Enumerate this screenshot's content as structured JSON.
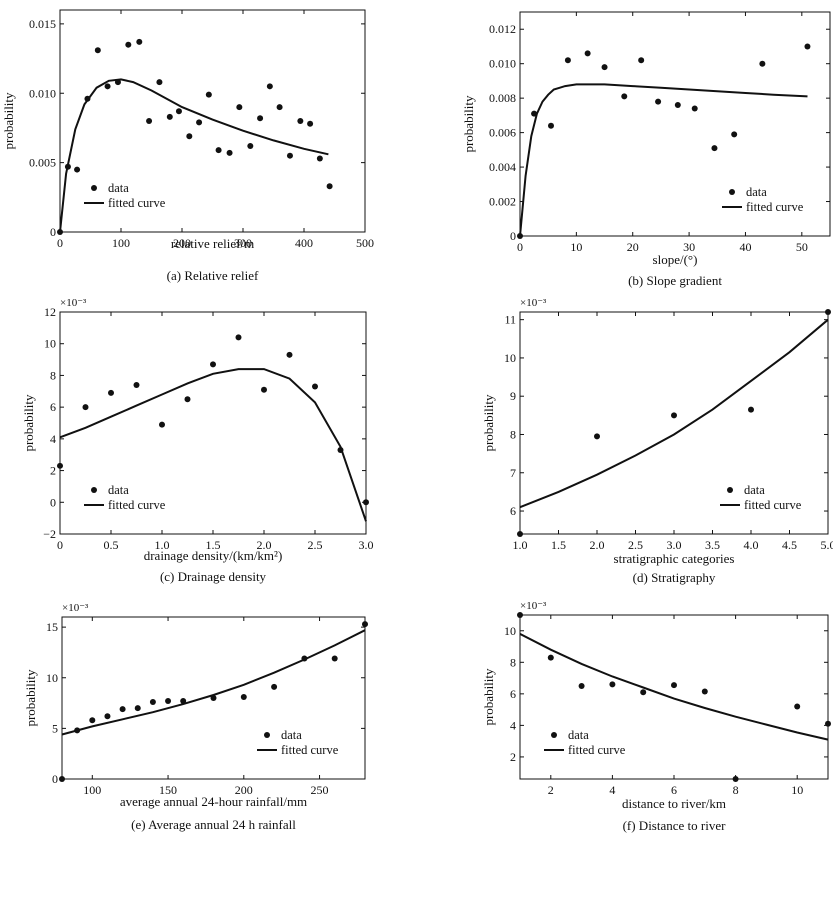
{
  "colors": {
    "ink": "#111111",
    "background": "#ffffff"
  },
  "chart_data": [
    {
      "id": "a",
      "type": "scatter",
      "caption": "(a) Relative relief",
      "xlabel": "relative relief/m",
      "ylabel": "probability",
      "xlim": [
        0,
        500
      ],
      "ylim": [
        0,
        0.016
      ],
      "xticks": [
        0,
        100,
        200,
        300,
        400,
        500
      ],
      "xtick_labels": [
        "0",
        "100",
        "200",
        "300",
        "400",
        "500"
      ],
      "yticks": [
        0,
        0.005,
        0.01,
        0.015
      ],
      "ytick_labels": [
        "0",
        "0.005",
        "0.010",
        "0.015"
      ],
      "multiplier": null,
      "legend": {
        "data": "data",
        "fit": "fitted curve",
        "position": "bottom-left"
      },
      "series": [
        {
          "name": "data",
          "x": [
            0,
            13,
            28,
            45,
            62,
            78,
            95,
            112,
            130,
            146,
            163,
            180,
            195,
            212,
            228,
            244,
            260,
            278,
            294,
            312,
            328,
            344,
            360,
            377,
            394,
            410,
            426,
            442
          ],
          "y": [
            0,
            0.0047,
            0.0045,
            0.0096,
            0.0131,
            0.0105,
            0.0108,
            0.0135,
            0.0137,
            0.008,
            0.0108,
            0.0083,
            0.0087,
            0.0069,
            0.0079,
            0.0099,
            0.0059,
            0.0057,
            0.009,
            0.0062,
            0.0082,
            0.0105,
            0.009,
            0.0055,
            0.008,
            0.0078,
            0.0053,
            0.0033
          ]
        },
        {
          "name": "fitted curve",
          "x": [
            0,
            10,
            25,
            40,
            60,
            80,
            100,
            120,
            150,
            200,
            250,
            300,
            350,
            400,
            440
          ],
          "y": [
            0,
            0.0042,
            0.0074,
            0.0092,
            0.0104,
            0.0109,
            0.011,
            0.0108,
            0.0102,
            0.009,
            0.0081,
            0.0073,
            0.0066,
            0.006,
            0.0056
          ]
        }
      ]
    },
    {
      "id": "b",
      "type": "scatter",
      "caption": "(b) Slope gradient",
      "xlabel": "slope/(°)",
      "ylabel": "probability",
      "xlim": [
        0,
        55
      ],
      "ylim": [
        0,
        0.013
      ],
      "xticks": [
        0,
        10,
        20,
        30,
        40,
        50
      ],
      "xtick_labels": [
        "0",
        "10",
        "20",
        "30",
        "40",
        "50"
      ],
      "yticks": [
        0,
        0.002,
        0.004,
        0.006,
        0.008,
        0.01,
        0.012
      ],
      "ytick_labels": [
        "0",
        "0.002",
        "0.004",
        "0.006",
        "0.008",
        "0.010",
        "0.012"
      ],
      "multiplier": null,
      "legend": {
        "data": "data",
        "fit": "fitted curve",
        "position": "bottom-right"
      },
      "series": [
        {
          "name": "data",
          "x": [
            0,
            2.5,
            5.5,
            8.5,
            12,
            15,
            18.5,
            21.5,
            24.5,
            28,
            31,
            34.5,
            38,
            43,
            51
          ],
          "y": [
            0,
            0.0071,
            0.0064,
            0.0102,
            0.0106,
            0.0098,
            0.0081,
            0.0102,
            0.0078,
            0.0076,
            0.0074,
            0.0051,
            0.0059,
            0.01,
            0.011
          ]
        },
        {
          "name": "fitted curve",
          "x": [
            0,
            1,
            2,
            3,
            4,
            5,
            6,
            7,
            8,
            10,
            12,
            15,
            20,
            25,
            30,
            35,
            40,
            45,
            51
          ],
          "y": [
            0,
            0.0035,
            0.0058,
            0.0071,
            0.0078,
            0.0082,
            0.0085,
            0.0086,
            0.0087,
            0.0088,
            0.0088,
            0.0088,
            0.0087,
            0.0086,
            0.0085,
            0.0084,
            0.0083,
            0.0082,
            0.0081
          ]
        }
      ]
    },
    {
      "id": "c",
      "type": "scatter",
      "caption": "(c) Drainage density",
      "xlabel": "drainage density/(km/km²)",
      "ylabel": "probability",
      "xlim": [
        0,
        3
      ],
      "ylim": [
        -2,
        12
      ],
      "xticks": [
        0,
        0.5,
        1,
        1.5,
        2,
        2.5,
        3
      ],
      "xtick_labels": [
        "0",
        "0.5",
        "1.0",
        "1.5",
        "2.0",
        "2.5",
        "3.0"
      ],
      "yticks": [
        -2,
        0,
        2,
        4,
        6,
        8,
        10,
        12
      ],
      "ytick_labels": [
        "−2",
        "0",
        "2",
        "4",
        "6",
        "8",
        "10",
        "12"
      ],
      "multiplier": "×10⁻³",
      "legend": {
        "data": "data",
        "fit": "fitted curve",
        "position": "bottom-left"
      },
      "series": [
        {
          "name": "data",
          "x": [
            0,
            0.25,
            0.5,
            0.75,
            1,
            1.25,
            1.5,
            1.75,
            2,
            2.25,
            2.5,
            2.75,
            3
          ],
          "y": [
            2.3,
            6,
            6.9,
            7.4,
            4.9,
            6.5,
            8.7,
            10.4,
            7.1,
            9.3,
            7.3,
            3.3,
            0
          ]
        },
        {
          "name": "fitted curve",
          "x": [
            0,
            0.25,
            0.5,
            0.75,
            1,
            1.25,
            1.5,
            1.75,
            2,
            2.25,
            2.5,
            2.75,
            3
          ],
          "y": [
            4.1,
            4.7,
            5.4,
            6.1,
            6.8,
            7.5,
            8.1,
            8.4,
            8.4,
            7.8,
            6.3,
            3.5,
            -1.2
          ]
        }
      ]
    },
    {
      "id": "d",
      "type": "scatter",
      "caption": "(d) Stratigraphy",
      "xlabel": "stratigraphic categories",
      "ylabel": "probability",
      "xlim": [
        1,
        5
      ],
      "ylim": [
        5.4,
        11.2
      ],
      "xticks": [
        1,
        1.5,
        2,
        2.5,
        3,
        3.5,
        4,
        4.5,
        5
      ],
      "xtick_labels": [
        "1.0",
        "1.5",
        "2.0",
        "2.5",
        "3.0",
        "3.5",
        "4.0",
        "4.5",
        "5.0"
      ],
      "yticks": [
        6,
        7,
        8,
        9,
        10,
        11
      ],
      "ytick_labels": [
        "6",
        "7",
        "8",
        "9",
        "10",
        "11"
      ],
      "multiplier": "×10⁻³",
      "legend": {
        "data": "data",
        "fit": "fitted curve",
        "position": "bottom-right"
      },
      "series": [
        {
          "name": "data",
          "x": [
            1,
            2,
            3,
            4,
            5
          ],
          "y": [
            5.4,
            7.95,
            8.5,
            8.65,
            11.2
          ]
        },
        {
          "name": "fitted curve",
          "x": [
            1,
            1.5,
            2,
            2.5,
            3,
            3.5,
            4,
            4.5,
            5
          ],
          "y": [
            6.1,
            6.5,
            6.95,
            7.45,
            8.0,
            8.65,
            9.4,
            10.15,
            11.0
          ]
        }
      ]
    },
    {
      "id": "e",
      "type": "scatter",
      "caption": "(e) Average annual 24 h rainfall",
      "xlabel": "average annual 24-hour rainfall/mm",
      "ylabel": "probability",
      "xlim": [
        80,
        280
      ],
      "ylim": [
        0,
        16
      ],
      "xticks": [
        100,
        150,
        200,
        250
      ],
      "xtick_labels": [
        "100",
        "150",
        "200",
        "250"
      ],
      "yticks": [
        0,
        5,
        10,
        15
      ],
      "ytick_labels": [
        "0",
        "5",
        "10",
        "15"
      ],
      "multiplier": "×10⁻³",
      "legend": {
        "data": "data",
        "fit": "fitted curve",
        "position": "bottom-right"
      },
      "series": [
        {
          "name": "data",
          "x": [
            80,
            90,
            100,
            110,
            120,
            130,
            140,
            150,
            160,
            180,
            200,
            220,
            240,
            260,
            280
          ],
          "y": [
            0,
            4.8,
            5.8,
            6.2,
            6.9,
            7.0,
            7.6,
            7.7,
            7.7,
            8.0,
            8.1,
            9.1,
            11.9,
            11.9,
            15.3
          ]
        },
        {
          "name": "fitted curve",
          "x": [
            80,
            100,
            120,
            140,
            160,
            180,
            200,
            220,
            240,
            260,
            280
          ],
          "y": [
            4.4,
            5.2,
            5.9,
            6.6,
            7.4,
            8.3,
            9.3,
            10.5,
            11.8,
            13.2,
            14.7
          ]
        }
      ]
    },
    {
      "id": "f",
      "type": "scatter",
      "caption": "(f) Distance to river",
      "xlabel": "distance to river/km",
      "ylabel": "probability",
      "xlim": [
        1,
        11
      ],
      "ylim": [
        0.6,
        11
      ],
      "xticks": [
        2,
        4,
        6,
        8,
        10
      ],
      "xtick_labels": [
        "2",
        "4",
        "6",
        "8",
        "10"
      ],
      "yticks": [
        2,
        4,
        6,
        8,
        10
      ],
      "ytick_labels": [
        "2",
        "4",
        "6",
        "8",
        "10"
      ],
      "multiplier": "×10⁻³",
      "legend": {
        "data": "data",
        "fit": "fitted curve",
        "position": "bottom-left"
      },
      "series": [
        {
          "name": "data",
          "x": [
            1,
            2,
            3,
            4,
            5,
            6,
            7,
            8,
            10,
            11
          ],
          "y": [
            11,
            8.3,
            6.5,
            6.6,
            6.1,
            6.55,
            6.15,
            0.6,
            5.2,
            4.1
          ]
        },
        {
          "name": "fitted curve",
          "x": [
            1,
            2,
            3,
            4,
            5,
            6,
            7,
            8,
            9,
            10,
            11
          ],
          "y": [
            9.8,
            8.8,
            7.9,
            7.1,
            6.4,
            5.7,
            5.1,
            4.55,
            4.05,
            3.55,
            3.1
          ]
        }
      ]
    }
  ]
}
